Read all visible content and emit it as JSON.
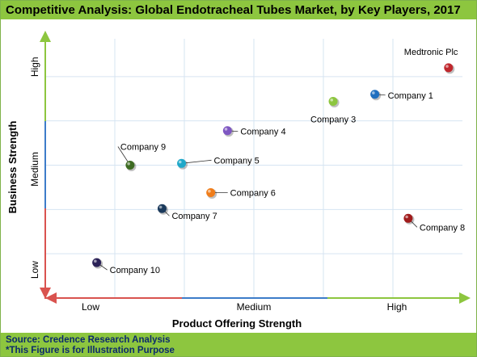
{
  "title": "Competitive Analysis: Global Endotracheal Tubes Market, by Key Players, 2017",
  "footer": {
    "source": "Source: Credence Research Analysis",
    "note": "*This Figure is for Illustration Purpose"
  },
  "chart_data": {
    "type": "scatter",
    "xlabel": "Product Offering Strength",
    "ylabel": "Business Strength",
    "x_ticks": [
      "Low",
      "Medium",
      "High"
    ],
    "y_ticks": [
      "Low",
      "Medium",
      "High"
    ],
    "xlim": [
      0,
      3
    ],
    "ylim": [
      0,
      3
    ],
    "grid": true,
    "points": [
      {
        "label": "Medtronic Plc",
        "x": 2.9,
        "y": 2.6,
        "color": "#c0272d"
      },
      {
        "label": "Company 1",
        "x": 2.37,
        "y": 2.3,
        "color": "#1f6fbf"
      },
      {
        "label": "Company 3",
        "x": 2.07,
        "y": 2.22,
        "color": "#8dc63f"
      },
      {
        "label": "Company 4",
        "x": 1.31,
        "y": 1.89,
        "color": "#7e57c2"
      },
      {
        "label": "Company 5",
        "x": 0.98,
        "y": 1.52,
        "color": "#1fa8c9"
      },
      {
        "label": "Company 6",
        "x": 1.19,
        "y": 1.19,
        "color": "#f07d1a"
      },
      {
        "label": "Company 7",
        "x": 0.84,
        "y": 1.01,
        "color": "#1b3a5c"
      },
      {
        "label": "Company 8",
        "x": 2.61,
        "y": 0.9,
        "color": "#a01b1b"
      },
      {
        "label": "Company 9",
        "x": 0.61,
        "y": 1.5,
        "color": "#3d6b22"
      },
      {
        "label": "Company 10",
        "x": 0.37,
        "y": 0.4,
        "color": "#2b2257"
      }
    ]
  }
}
